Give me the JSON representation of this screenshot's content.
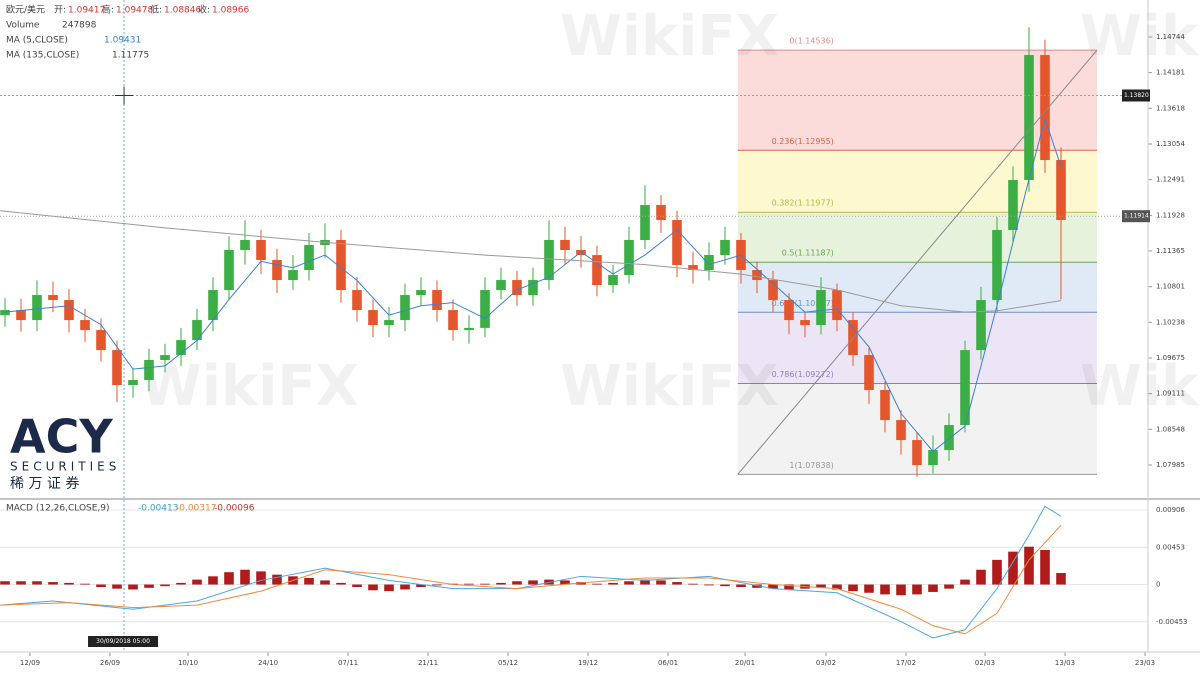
{
  "chart_data": {
    "type": "candlestick",
    "header": {
      "symbol": "欧元/美元",
      "open_label": "开:",
      "open": 1.09417,
      "high_label": "高:",
      "high": 1.09478,
      "low_label": "低:",
      "low": 1.08846,
      "close_label": "收:",
      "close": 1.08966
    },
    "volume": {
      "name": "Volume",
      "value": 247898
    },
    "xlim": [
      -0.3125,
      71.4375
    ],
    "ylim": [
      1.07464,
      1.15328
    ],
    "xticks": [
      {
        "value": 1.56,
        "label": "12/09"
      },
      {
        "value": 6.56,
        "label": "26/09"
      },
      {
        "value": 11.44,
        "label": "10/10"
      },
      {
        "value": 16.44,
        "label": "24/10"
      },
      {
        "value": 21.44,
        "label": "07/11"
      },
      {
        "value": 26.44,
        "label": "21/11"
      },
      {
        "value": 31.44,
        "label": "05/12"
      },
      {
        "value": 36.44,
        "label": "19/12"
      },
      {
        "value": 41.44,
        "label": "06/01"
      },
      {
        "value": 46.25,
        "label": "20/01"
      },
      {
        "value": 51.31,
        "label": "03/02"
      },
      {
        "value": 56.31,
        "label": "17/02"
      },
      {
        "value": 61.25,
        "label": "02/03"
      },
      {
        "value": 66.25,
        "label": "13/03"
      },
      {
        "value": 71.25,
        "label": "23/03"
      }
    ],
    "yticks": [
      1.14744,
      1.14181,
      1.13618,
      1.13054,
      1.12491,
      1.11928,
      1.11365,
      1.10801,
      1.10238,
      1.09675,
      1.09111,
      1.08548,
      1.07985
    ],
    "candles": {
      "up_color": "#3cae45",
      "down_color": "#e4572e",
      "open": [
        1.1035,
        1.10432,
        1.10274,
        1.10669,
        1.1059,
        1.10274,
        1.10116,
        1.098,
        1.09248,
        1.09327,
        1.09643,
        1.09721,
        1.09958,
        1.10274,
        1.10748,
        1.1138,
        1.11538,
        1.11222,
        1.10906,
        1.11064,
        1.11459,
        1.11538,
        1.10748,
        1.10432,
        1.10195,
        1.10274,
        1.10669,
        1.10748,
        1.10432,
        1.10116,
        1.1015,
        1.10748,
        1.10906,
        1.10669,
        1.10906,
        1.11538,
        1.1138,
        1.113,
        1.10827,
        1.10985,
        1.11538,
        1.1209,
        1.11854,
        1.11143,
        1.11064,
        1.11301,
        1.11538,
        1.11064,
        1.10906,
        1.1059,
        1.10274,
        1.10195,
        1.10748,
        1.10274,
        1.09721,
        1.09169,
        1.08695,
        1.08379,
        1.07984,
        1.08221,
        1.08616,
        1.098,
        1.1059,
        1.11696,
        1.12485,
        1.14459,
        1.12801
      ],
      "high": [
        1.1062,
        1.1061,
        1.109,
        1.1088,
        1.1076,
        1.1045,
        1.103,
        1.0995,
        1.0952,
        1.0982,
        1.099,
        1.1015,
        1.1045,
        1.1095,
        1.116,
        1.1185,
        1.117,
        1.114,
        1.113,
        1.1165,
        1.118,
        1.117,
        1.1095,
        1.106,
        1.1048,
        1.1085,
        1.1095,
        1.109,
        1.106,
        1.1035,
        1.1095,
        1.111,
        1.1105,
        1.111,
        1.1185,
        1.1175,
        1.116,
        1.1145,
        1.1115,
        1.1175,
        1.124,
        1.1225,
        1.12,
        1.1135,
        1.115,
        1.1175,
        1.1165,
        1.112,
        1.1105,
        1.107,
        1.104,
        1.1095,
        1.1085,
        1.104,
        1.0985,
        1.093,
        1.0885,
        1.085,
        1.0845,
        1.088,
        1.0995,
        1.108,
        1.119,
        1.127,
        1.149,
        1.147,
        1.13
      ],
      "low": [
        1.1017,
        1.1009,
        1.101,
        1.104,
        1.1008,
        1.0993,
        1.0962,
        1.0898,
        1.0905,
        1.0915,
        1.0945,
        1.0955,
        1.098,
        1.101,
        1.106,
        1.1115,
        1.11,
        1.107,
        1.1075,
        1.109,
        1.1125,
        1.1055,
        1.1025,
        1.1,
        1.1,
        1.101,
        1.105,
        1.1025,
        1.0995,
        1.099,
        1.1,
        1.106,
        1.105,
        1.105,
        1.1075,
        1.1115,
        1.111,
        1.1065,
        1.107,
        1.1085,
        1.114,
        1.1165,
        1.1095,
        1.1085,
        1.109,
        1.1115,
        1.1085,
        1.107,
        1.104,
        1.1005,
        1.1,
        1.1005,
        1.101,
        1.0955,
        1.0895,
        1.085,
        1.0815,
        1.078,
        1.0785,
        1.0805,
        1.085,
        1.0965,
        1.104,
        1.115,
        1.123,
        1.126,
        1.106
      ],
      "close": [
        1.10432,
        1.10274,
        1.10669,
        1.1059,
        1.10274,
        1.10116,
        1.098,
        1.09248,
        1.09327,
        1.09643,
        1.09721,
        1.09958,
        1.10274,
        1.10748,
        1.1138,
        1.11538,
        1.11222,
        1.10906,
        1.11064,
        1.11459,
        1.11538,
        1.10748,
        1.10432,
        1.10195,
        1.10274,
        1.10669,
        1.10748,
        1.10432,
        1.10116,
        1.1015,
        1.10748,
        1.10906,
        1.10669,
        1.10906,
        1.11538,
        1.1138,
        1.113,
        1.10827,
        1.10985,
        1.11538,
        1.1209,
        1.11854,
        1.11143,
        1.11064,
        1.11301,
        1.11538,
        1.11064,
        1.10906,
        1.1059,
        1.10274,
        1.10195,
        1.10748,
        1.10274,
        1.09721,
        1.09169,
        1.08695,
        1.08379,
        1.07984,
        1.08221,
        1.08616,
        1.098,
        1.1059,
        1.11696,
        1.12485,
        1.14459,
        1.12801,
        1.11854
      ]
    },
    "series": [
      {
        "name": "MA (5,CLOSE)",
        "last": 1.09431,
        "color": "#3d7fd6",
        "x": [
          0,
          2,
          4,
          6,
          8,
          10,
          12,
          14,
          16,
          18,
          20,
          22,
          24,
          26,
          28,
          30,
          32,
          34,
          36,
          38,
          40,
          42,
          44,
          46,
          48,
          50,
          52,
          54,
          56,
          58,
          60,
          62,
          64,
          65,
          66
        ],
        "values": [
          1.104,
          1.1045,
          1.105,
          1.102,
          1.095,
          1.0955,
          1.0995,
          1.106,
          1.112,
          1.111,
          1.113,
          1.109,
          1.1035,
          1.105,
          1.1055,
          1.103,
          1.1075,
          1.1095,
          1.1135,
          1.11,
          1.113,
          1.117,
          1.1115,
          1.113,
          1.1085,
          1.104,
          1.1045,
          1.0985,
          1.088,
          1.082,
          1.086,
          1.105,
          1.125,
          1.1345,
          1.127
        ]
      },
      {
        "name": "MA (135,CLOSE)",
        "last": 1.11775,
        "color": "#9a9a9a",
        "x": [
          -0.3,
          10,
          20,
          30,
          40,
          46,
          52,
          56,
          60,
          62,
          64,
          66
        ],
        "values": [
          1.12,
          1.1173,
          1.115,
          1.113,
          1.1115,
          1.11,
          1.1075,
          1.105,
          1.104,
          1.1042,
          1.105,
          1.1058
        ]
      }
    ],
    "fibonacci": {
      "x": [
        45.8,
        68.25
      ],
      "levels": [
        {
          "label": "0(1.14536)",
          "value": 1.14536,
          "color": "#d98c8c"
        },
        {
          "label": "0.236(1.12955)",
          "value": 1.12955,
          "color": "#d9634a"
        },
        {
          "label": "0.382(1.11977)",
          "value": 1.11977,
          "color": "#b8b840"
        },
        {
          "label": "0.5(1.11187)",
          "value": 1.11187,
          "color": "#6aa84f"
        },
        {
          "label": "0.618(1.10397)",
          "value": 1.10397,
          "color": "#6f8fc0"
        },
        {
          "label": "0.786(1.09272)",
          "value": 1.09272,
          "color": "#8e7cc3"
        },
        {
          "label": "1(1.07838)",
          "value": 1.07838,
          "color": "#999999"
        }
      ],
      "fills": [
        "#fbdcdb",
        "#fdf8cf",
        "#e7f2dc",
        "#dfeaf6",
        "#ebe5f5",
        "#f2f2f2"
      ]
    },
    "price_line": 1.11914,
    "crosshair": {
      "x": 7.44,
      "price": {
        "value": 1.1382,
        "label": "1.13820"
      },
      "date": "30/09/2018 05:00"
    },
    "macd": {
      "name": "MACD (12,26,CLOSE,9)",
      "readings": [
        -0.00413,
        -0.00317,
        -0.00096
      ],
      "reading_colors": [
        "#3d9bd6",
        "#f08a3c",
        "#c0392b"
      ],
      "y2lim": [
        -0.00796,
        0.01028
      ],
      "y2ticks": [
        0.00906,
        0.00453,
        0,
        -0.00453
      ],
      "macd_line": {
        "color": "#4aa8e0",
        "x": [
          -0.3,
          3,
          8,
          12,
          16,
          20,
          24,
          28,
          32,
          36,
          40,
          44,
          48,
          52,
          56,
          58,
          60,
          62,
          64,
          65,
          66
        ],
        "values": [
          -0.0025,
          -0.002,
          -0.003,
          -0.002,
          0.0005,
          0.002,
          0.0005,
          -0.0005,
          -0.0005,
          0.001,
          0.0005,
          0.001,
          -0.0005,
          -0.001,
          -0.0045,
          -0.0065,
          -0.0055,
          -0.0005,
          0.006,
          0.0095,
          0.0083
        ]
      },
      "signal_line": {
        "color": "#f08a3c",
        "x": [
          -0.3,
          4,
          8,
          12,
          16,
          20,
          24,
          28,
          32,
          36,
          40,
          44,
          48,
          52,
          56,
          58,
          60,
          62,
          64,
          66
        ],
        "values": [
          -0.0025,
          -0.0022,
          -0.0028,
          -0.0025,
          -0.0008,
          0.0018,
          0.0012,
          0,
          -0.0005,
          0.0002,
          0.0008,
          0.0008,
          0,
          -0.0005,
          -0.003,
          -0.005,
          -0.006,
          -0.0035,
          0.003,
          0.0072
        ]
      },
      "histogram": {
        "color": "#b01c1c",
        "values": [
          0.0004,
          0.0004,
          0.0004,
          0.0003,
          0.0002,
          0.0001,
          -0.0003,
          -0.0005,
          -0.0006,
          -0.0004,
          -0.0002,
          0.0002,
          0.0006,
          0.001,
          0.0015,
          0.0018,
          0.0016,
          0.0012,
          0.001,
          0.0008,
          0.0005,
          0.0002,
          -0.0003,
          -0.0007,
          -0.0008,
          -0.0006,
          -0.0003,
          -0.0001,
          0.0001,
          0.0001,
          0.0001,
          0.0002,
          0.0004,
          0.0005,
          0.0006,
          0.0005,
          0.0003,
          0.0001,
          0.0002,
          0.0004,
          0.0006,
          0.0005,
          0.0003,
          0.0001,
          -0.0001,
          -0.0002,
          -0.0003,
          -0.0004,
          -0.0005,
          -0.0006,
          -0.0005,
          -0.0004,
          -0.0006,
          -0.0008,
          -0.001,
          -0.0012,
          -0.0013,
          -0.0012,
          -0.0009,
          -0.0005,
          0.0006,
          0.0018,
          0.003,
          0.004,
          0.0046,
          0.0042,
          0.0014
        ]
      }
    },
    "logo": {
      "brand": "ACY",
      "sub": "SECURITIES",
      "cn": "稀 万 证 券"
    },
    "watermark": "WikiFX"
  }
}
